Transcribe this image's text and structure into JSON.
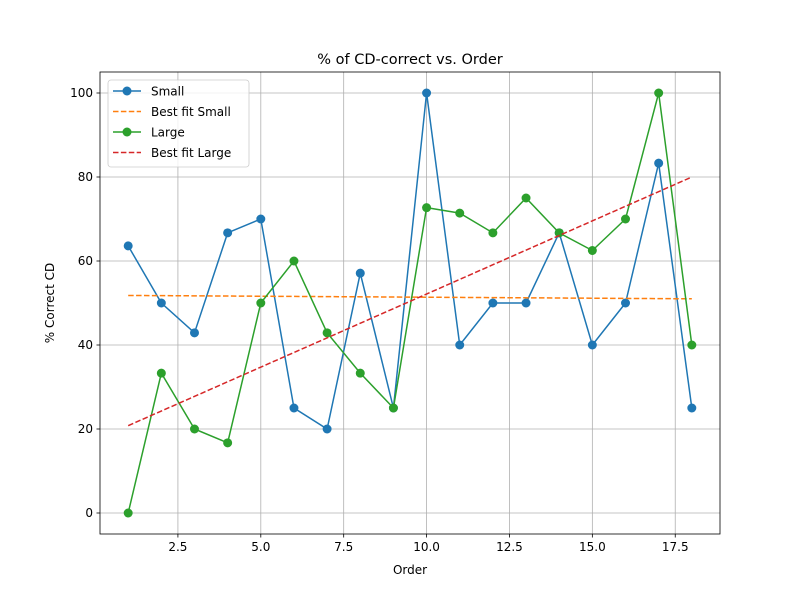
{
  "chart_data": {
    "type": "line",
    "title": "% of CD-correct vs. Order",
    "xlabel": "Order",
    "ylabel": "% Correct CD",
    "xlim": [
      0.15,
      18.85
    ],
    "ylim": [
      -5,
      105
    ],
    "xticks": [
      2.5,
      5.0,
      7.5,
      10.0,
      12.5,
      15.0,
      17.5
    ],
    "xtick_labels": [
      "2.5",
      "5.0",
      "7.5",
      "10.0",
      "12.5",
      "15.0",
      "17.5"
    ],
    "yticks": [
      0,
      20,
      40,
      60,
      80,
      100
    ],
    "ytick_labels": [
      "0",
      "20",
      "40",
      "60",
      "80",
      "100"
    ],
    "grid": true,
    "legend_position": "top-left",
    "series": [
      {
        "name": "Small",
        "style": "solid-marker",
        "color": "#1f77b4",
        "x": [
          1,
          2,
          3,
          4,
          5,
          6,
          7,
          8,
          9,
          10,
          11,
          12,
          13,
          14,
          15,
          16,
          17,
          18
        ],
        "y": [
          63.6,
          50,
          42.9,
          66.7,
          70,
          25,
          20,
          57.1,
          25,
          100,
          40,
          50,
          50,
          66.7,
          40,
          50,
          83.3,
          25
        ]
      },
      {
        "name": "Best fit Small",
        "style": "dashed",
        "color": "#ff7f0e",
        "x": [
          1,
          18
        ],
        "y": [
          51.8,
          51.0
        ]
      },
      {
        "name": "Large",
        "style": "solid-marker",
        "color": "#2ca02c",
        "x": [
          1,
          2,
          3,
          4,
          5,
          6,
          7,
          8,
          9,
          10,
          11,
          12,
          13,
          14,
          15,
          16,
          17,
          18
        ],
        "y": [
          0,
          33.3,
          20,
          16.7,
          50,
          60,
          42.9,
          33.3,
          25,
          72.7,
          71.4,
          66.7,
          75,
          66.7,
          62.5,
          70,
          100,
          40
        ]
      },
      {
        "name": "Best fit Large",
        "style": "dashed",
        "color": "#d62728",
        "x": [
          1,
          18
        ],
        "y": [
          20.8,
          80.0
        ]
      }
    ]
  }
}
